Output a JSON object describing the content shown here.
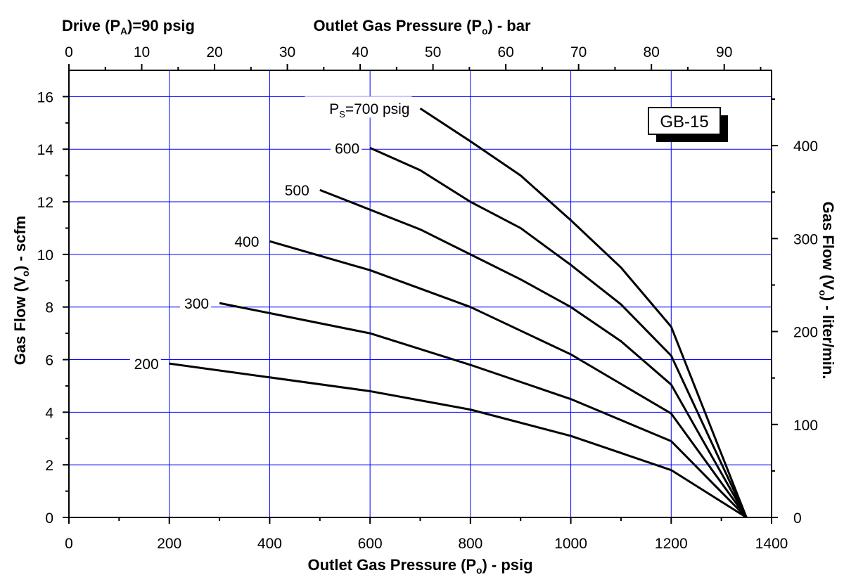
{
  "chart_data": {
    "type": "line",
    "badge": "GB-15",
    "top_left_note": {
      "pre": "Drive (P",
      "sub": "A",
      "post": ")=90 psig"
    },
    "xlabel": {
      "pre": "Outlet Gas Pressure (P",
      "sub": "o",
      "post": ") - psig"
    },
    "x2label": {
      "pre": "Outlet Gas Pressure (P",
      "sub": "o",
      "post": ") - bar"
    },
    "ylabel": {
      "pre": "Gas Flow (V",
      "sub": "o",
      "post": ") - scfm"
    },
    "y2label": {
      "pre": "Gas Flow (V",
      "sub": "o",
      "post": ") - liter/min."
    },
    "xlim": [
      0,
      1400
    ],
    "ylim": [
      0,
      17
    ],
    "x2lim": [
      0,
      96.5
    ],
    "y2lim": [
      0,
      481
    ],
    "x_ticks": [
      0,
      200,
      400,
      600,
      800,
      1000,
      1200,
      1400
    ],
    "y_ticks": [
      0,
      2,
      4,
      6,
      8,
      10,
      12,
      14,
      16
    ],
    "x2_ticks": [
      0,
      10,
      20,
      30,
      40,
      50,
      60,
      70,
      80,
      90
    ],
    "y2_ticks": [
      0,
      100,
      200,
      300,
      400
    ],
    "grid": true,
    "series": [
      {
        "name": "200",
        "label": "200",
        "x": [
          200,
          600,
          800,
          1000,
          1200,
          1350
        ],
        "y": [
          5.85,
          4.8,
          4.1,
          3.1,
          1.8,
          0
        ]
      },
      {
        "name": "300",
        "label": "300",
        "x": [
          300,
          600,
          800,
          1000,
          1200,
          1350
        ],
        "y": [
          8.15,
          7.0,
          5.8,
          4.5,
          2.9,
          0
        ]
      },
      {
        "name": "400",
        "label": "400",
        "x": [
          400,
          600,
          800,
          1000,
          1200,
          1350
        ],
        "y": [
          10.5,
          9.4,
          8.0,
          6.2,
          3.95,
          0
        ]
      },
      {
        "name": "500",
        "label": "500",
        "x": [
          500,
          700,
          800,
          900,
          1000,
          1100,
          1200,
          1350
        ],
        "y": [
          12.45,
          10.95,
          10.0,
          9.05,
          8.0,
          6.7,
          5.05,
          0
        ]
      },
      {
        "name": "600",
        "label": "600",
        "x": [
          600,
          700,
          800,
          900,
          1000,
          1100,
          1200,
          1350
        ],
        "y": [
          14.05,
          13.2,
          12.0,
          11.0,
          9.6,
          8.1,
          6.15,
          0
        ]
      },
      {
        "name": "700",
        "label": {
          "pre": "P",
          "sub": "S",
          "post": "=700 psig"
        },
        "x": [
          700,
          800,
          900,
          1000,
          1100,
          1200,
          1350
        ],
        "y": [
          15.55,
          14.3,
          13.0,
          11.3,
          9.5,
          7.25,
          0
        ]
      }
    ]
  }
}
